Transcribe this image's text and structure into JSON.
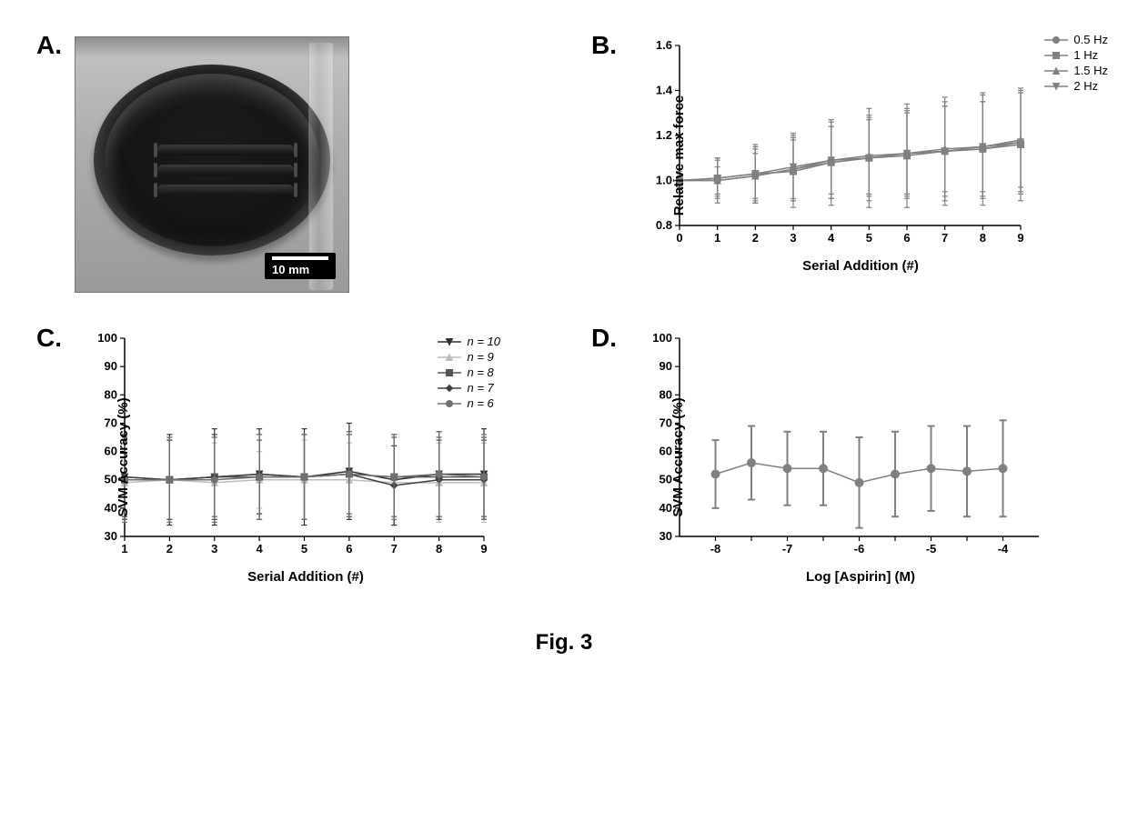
{
  "figure_caption": "Fig. 3",
  "panelA": {
    "label": "A.",
    "scalebar_text": "10 mm",
    "scalebar_color": "#ffffff",
    "scalebar_bg": "#000000"
  },
  "panelB": {
    "label": "B.",
    "type": "line-errorbar",
    "xlabel": "Serial  Addition (#)",
    "ylabel": "Relative max force",
    "xlim": [
      0,
      9
    ],
    "ylim": [
      0.8,
      1.6
    ],
    "xticks": [
      0,
      1,
      2,
      3,
      4,
      5,
      6,
      7,
      8,
      9
    ],
    "yticks": [
      0.8,
      1.0,
      1.2,
      1.4,
      1.6
    ],
    "axis_color": "#000000",
    "label_fontsize": 15,
    "tick_fontsize": 13,
    "error_cap": 3,
    "error_width": 1.2,
    "series": [
      {
        "name": "0.5 Hz",
        "color": "#808080",
        "marker": "circle",
        "y": [
          1.0,
          1.0,
          1.02,
          1.05,
          1.08,
          1.1,
          1.12,
          1.13,
          1.14,
          1.17
        ],
        "err": [
          0.04,
          0.1,
          0.12,
          0.14,
          0.16,
          0.17,
          0.19,
          0.2,
          0.21,
          0.22
        ]
      },
      {
        "name": "1 Hz",
        "color": "#808080",
        "marker": "square",
        "y": [
          1.0,
          1.01,
          1.03,
          1.04,
          1.08,
          1.1,
          1.11,
          1.13,
          1.14,
          1.16
        ],
        "err": [
          0.03,
          0.08,
          0.13,
          0.16,
          0.19,
          0.22,
          0.23,
          0.24,
          0.25,
          0.25
        ]
      },
      {
        "name": "1.5 Hz",
        "color": "#808080",
        "marker": "triangle-up",
        "y": [
          1.0,
          1.0,
          1.02,
          1.05,
          1.09,
          1.11,
          1.12,
          1.14,
          1.15,
          1.18
        ],
        "err": [
          0.02,
          0.06,
          0.1,
          0.13,
          0.15,
          0.17,
          0.18,
          0.19,
          0.2,
          0.21
        ]
      },
      {
        "name": "2 Hz",
        "color": "#808080",
        "marker": "triangle-down",
        "y": [
          1.0,
          1.01,
          1.03,
          1.06,
          1.09,
          1.1,
          1.12,
          1.13,
          1.15,
          1.17
        ],
        "err": [
          0.03,
          0.09,
          0.12,
          0.15,
          0.17,
          0.19,
          0.2,
          0.22,
          0.23,
          0.23
        ]
      }
    ],
    "legend_pos": "top-right"
  },
  "panelC": {
    "label": "C.",
    "type": "line-errorbar",
    "xlabel": "Serial  Addition (#)",
    "ylabel": "SVM Accuracy (%)",
    "xlim": [
      1,
      9
    ],
    "ylim": [
      30,
      100
    ],
    "xticks": [
      1,
      2,
      3,
      4,
      5,
      6,
      7,
      8,
      9
    ],
    "yticks": [
      30,
      40,
      50,
      60,
      70,
      80,
      90,
      100
    ],
    "axis_color": "#000000",
    "label_fontsize": 15,
    "tick_fontsize": 13,
    "error_cap": 3,
    "error_width": 1.2,
    "series": [
      {
        "name": "n = 10",
        "label": "n = 10",
        "color": "#303030",
        "marker": "triangle-down",
        "y": [
          51,
          50,
          51,
          52,
          51,
          53,
          50,
          52,
          52
        ],
        "err": [
          15,
          16,
          17,
          16,
          17,
          17,
          16,
          15,
          16
        ]
      },
      {
        "name": "n = 9",
        "label": "n = 9",
        "color": "#bdbdbd",
        "marker": "triangle-up",
        "y": [
          49,
          50,
          49,
          50,
          50,
          50,
          49,
          49,
          49
        ],
        "err": [
          14,
          14,
          14,
          10,
          14,
          13,
          13,
          14,
          14
        ]
      },
      {
        "name": "n = 8",
        "label": "n = 8",
        "color": "#555555",
        "marker": "square",
        "y": [
          50,
          50,
          51,
          51,
          51,
          52,
          51,
          51,
          51
        ],
        "err": [
          14,
          15,
          14,
          13,
          15,
          14,
          14,
          14,
          14
        ]
      },
      {
        "name": "n = 7",
        "label": "n = 7",
        "color": "#404040",
        "marker": "diamond",
        "y": [
          51,
          50,
          51,
          52,
          51,
          52,
          48,
          50,
          50
        ],
        "err": [
          14,
          14,
          15,
          14,
          15,
          15,
          14,
          14,
          14
        ]
      },
      {
        "name": "n = 6",
        "label": "n = 6",
        "color": "#707070",
        "marker": "circle",
        "y": [
          50,
          50,
          50,
          51,
          51,
          52,
          51,
          52,
          51
        ],
        "err": [
          15,
          15,
          15,
          15,
          15,
          15,
          15,
          15,
          15
        ]
      }
    ],
    "legend_pos": "upper-right"
  },
  "panelD": {
    "label": "D.",
    "type": "line-errorbar",
    "xlabel": "Log [Aspirin] (M)",
    "ylabel": "SVM Accuracy (%)",
    "xlim": [
      -8.5,
      -3.5
    ],
    "ylim": [
      30,
      100
    ],
    "xticks": [
      -8,
      -7,
      -6,
      -5,
      -4
    ],
    "xticklabels": [
      "-8",
      "-7",
      "-6",
      "-5",
      "-4"
    ],
    "minor_x": [
      -7.5,
      -6.5,
      -5.5,
      -4.5
    ],
    "yticks": [
      30,
      40,
      50,
      60,
      70,
      80,
      90,
      100
    ],
    "axis_color": "#000000",
    "label_fontsize": 15,
    "tick_fontsize": 13,
    "error_cap": 4,
    "error_width": 2,
    "series": [
      {
        "name": "Aspirin",
        "color": "#808080",
        "marker": "circle",
        "x": [
          -8,
          -7.5,
          -7,
          -6.5,
          -6,
          -5.5,
          -5,
          -4.5,
          -4
        ],
        "y": [
          52,
          56,
          54,
          54,
          49,
          52,
          54,
          53,
          54
        ],
        "err": [
          12,
          13,
          13,
          13,
          16,
          15,
          15,
          16,
          17
        ]
      }
    ]
  }
}
